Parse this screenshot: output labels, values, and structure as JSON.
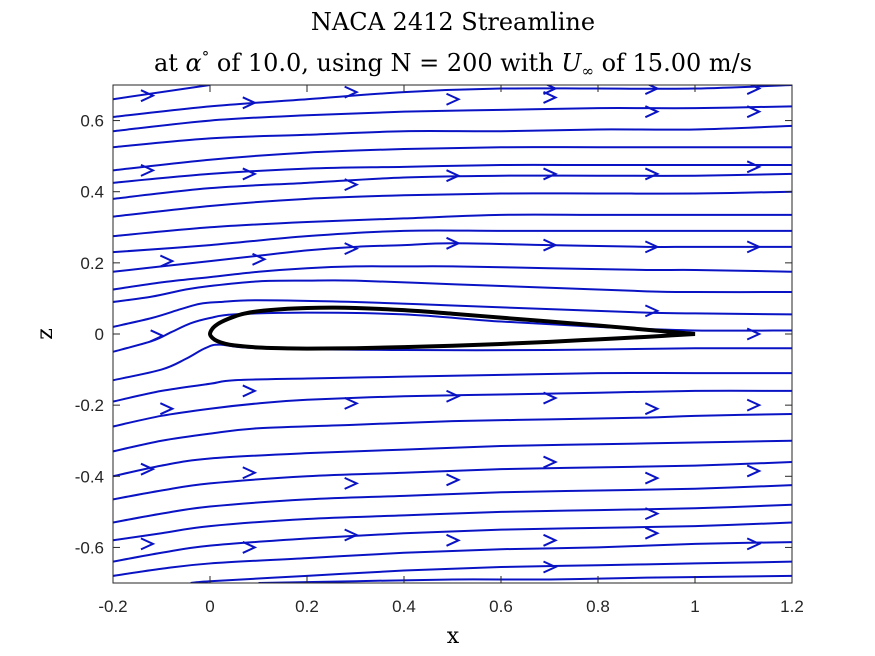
{
  "colors": {
    "streamline": "#0a13c4",
    "airfoil": "#000000"
  },
  "chart_data": {
    "type": "streamline",
    "title_line1": "NACA 2412 Streamline",
    "title_line2": "at α° of 10.0, using N = 200 with U∞ of 15.00 m/s",
    "title_prefix": "at ",
    "title_alpha": "α",
    "title_deg": "°",
    "title_mid": " of 10.0, using N = 200 with ",
    "title_U": "U",
    "title_inf": "∞",
    "title_suffix": " of 15.00 m/s",
    "xlabel": "x",
    "ylabel": "z",
    "xlim": [
      -0.2,
      1.2
    ],
    "ylim": [
      -0.7,
      0.7
    ],
    "xticks": [
      -0.2,
      0,
      0.2,
      0.4,
      0.6,
      0.8,
      1,
      1.2
    ],
    "xtick_labels": [
      "-0.2",
      "0",
      "0.2",
      "0.4",
      "0.6",
      "0.8",
      "1",
      "1.2"
    ],
    "yticks": [
      -0.6,
      -0.4,
      -0.2,
      0,
      0.2,
      0.4,
      0.6
    ],
    "ytick_labels": [
      "-0.6",
      "-0.4",
      "-0.2",
      "0",
      "0.2",
      "0.4",
      "0.6"
    ],
    "airfoil": {
      "name": "NACA 2412",
      "alpha_deg": 10.0,
      "chord": 1.0,
      "upper": [
        [
          1.0,
          0.0
        ],
        [
          0.95,
          0.006
        ],
        [
          0.9,
          0.012
        ],
        [
          0.8,
          0.024
        ],
        [
          0.7,
          0.035
        ],
        [
          0.6,
          0.046
        ],
        [
          0.5,
          0.057
        ],
        [
          0.4,
          0.067
        ],
        [
          0.3,
          0.073
        ],
        [
          0.25,
          0.074
        ],
        [
          0.2,
          0.073
        ],
        [
          0.15,
          0.07
        ],
        [
          0.1,
          0.064
        ],
        [
          0.07,
          0.057
        ],
        [
          0.05,
          0.049
        ],
        [
          0.03,
          0.038
        ],
        [
          0.015,
          0.027
        ],
        [
          0.005,
          0.015
        ],
        [
          0.0,
          0.0
        ]
      ],
      "lower": [
        [
          0.0,
          0.0
        ],
        [
          0.005,
          -0.011
        ],
        [
          0.015,
          -0.02
        ],
        [
          0.03,
          -0.027
        ],
        [
          0.05,
          -0.032
        ],
        [
          0.1,
          -0.038
        ],
        [
          0.15,
          -0.04
        ],
        [
          0.2,
          -0.041
        ],
        [
          0.3,
          -0.04
        ],
        [
          0.4,
          -0.037
        ],
        [
          0.5,
          -0.033
        ],
        [
          0.6,
          -0.028
        ],
        [
          0.7,
          -0.022
        ],
        [
          0.8,
          -0.015
        ],
        [
          0.9,
          -0.008
        ],
        [
          0.95,
          -0.004
        ],
        [
          1.0,
          0.0
        ]
      ]
    },
    "streamlines": [
      [
        [
          -0.2,
          0.66
        ],
        [
          0.0,
          0.7
        ]
      ],
      [
        [
          -0.2,
          0.61
        ],
        [
          0.0,
          0.64
        ],
        [
          0.2,
          0.66
        ],
        [
          0.4,
          0.68
        ],
        [
          0.6,
          0.69
        ],
        [
          0.8,
          0.69
        ],
        [
          1.0,
          0.69
        ],
        [
          1.2,
          0.7
        ]
      ],
      [
        [
          -0.2,
          0.57
        ],
        [
          0.0,
          0.6
        ],
        [
          0.2,
          0.615
        ],
        [
          0.4,
          0.625
        ],
        [
          0.6,
          0.63
        ],
        [
          0.8,
          0.635
        ],
        [
          1.0,
          0.635
        ],
        [
          1.2,
          0.64
        ]
      ],
      [
        [
          -0.2,
          0.525
        ],
        [
          0.0,
          0.55
        ],
        [
          0.2,
          0.56
        ],
        [
          0.4,
          0.57
        ],
        [
          0.6,
          0.57
        ],
        [
          0.8,
          0.575
        ],
        [
          1.0,
          0.575
        ],
        [
          1.2,
          0.585
        ]
      ],
      [
        [
          -0.2,
          0.46
        ],
        [
          0.0,
          0.49
        ],
        [
          0.2,
          0.51
        ],
        [
          0.4,
          0.52
        ],
        [
          0.6,
          0.525
        ],
        [
          0.8,
          0.525
        ],
        [
          1.0,
          0.525
        ],
        [
          1.2,
          0.525
        ]
      ],
      [
        [
          -0.2,
          0.425
        ],
        [
          0.0,
          0.45
        ],
        [
          0.2,
          0.465
        ],
        [
          0.4,
          0.47
        ],
        [
          0.6,
          0.475
        ],
        [
          0.8,
          0.475
        ],
        [
          1.0,
          0.475
        ],
        [
          1.2,
          0.475
        ]
      ],
      [
        [
          -0.2,
          0.38
        ],
        [
          0.0,
          0.41
        ],
        [
          0.2,
          0.425
        ],
        [
          0.4,
          0.44
        ],
        [
          0.6,
          0.445
        ],
        [
          0.8,
          0.445
        ],
        [
          1.0,
          0.445
        ],
        [
          1.2,
          0.45
        ]
      ],
      [
        [
          -0.2,
          0.33
        ],
        [
          0.0,
          0.36
        ],
        [
          0.2,
          0.38
        ],
        [
          0.4,
          0.39
        ],
        [
          0.6,
          0.395
        ],
        [
          0.8,
          0.395
        ],
        [
          1.0,
          0.395
        ],
        [
          1.2,
          0.4
        ]
      ],
      [
        [
          -0.2,
          0.275
        ],
        [
          0.0,
          0.3
        ],
        [
          0.2,
          0.315
        ],
        [
          0.4,
          0.325
        ],
        [
          0.6,
          0.335
        ],
        [
          0.8,
          0.335
        ],
        [
          1.0,
          0.335
        ],
        [
          1.2,
          0.335
        ]
      ],
      [
        [
          -0.2,
          0.23
        ],
        [
          0.0,
          0.25
        ],
        [
          0.2,
          0.275
        ],
        [
          0.4,
          0.29
        ],
        [
          0.6,
          0.29
        ],
        [
          0.8,
          0.29
        ],
        [
          1.0,
          0.29
        ],
        [
          1.2,
          0.29
        ]
      ],
      [
        [
          -0.2,
          0.175
        ],
        [
          -0.1,
          0.19
        ],
        [
          0.0,
          0.205
        ],
        [
          0.1,
          0.22
        ],
        [
          0.2,
          0.235
        ],
        [
          0.3,
          0.245
        ],
        [
          0.4,
          0.25
        ],
        [
          0.5,
          0.255
        ],
        [
          0.7,
          0.25
        ],
        [
          0.9,
          0.245
        ],
        [
          1.0,
          0.245
        ],
        [
          1.2,
          0.245
        ]
      ],
      [
        [
          -0.2,
          0.125
        ],
        [
          -0.1,
          0.145
        ],
        [
          0.0,
          0.16
        ],
        [
          0.1,
          0.175
        ],
        [
          0.2,
          0.185
        ],
        [
          0.3,
          0.19
        ],
        [
          0.4,
          0.19
        ],
        [
          0.5,
          0.19
        ],
        [
          0.7,
          0.185
        ],
        [
          0.9,
          0.18
        ],
        [
          1.0,
          0.18
        ],
        [
          1.2,
          0.175
        ]
      ],
      [
        [
          -0.2,
          0.09
        ],
        [
          -0.12,
          0.105
        ],
        [
          -0.05,
          0.125
        ],
        [
          0.0,
          0.135
        ],
        [
          0.1,
          0.148
        ],
        [
          0.2,
          0.15
        ],
        [
          0.3,
          0.15
        ],
        [
          0.5,
          0.14
        ],
        [
          0.7,
          0.13
        ],
        [
          0.9,
          0.12
        ],
        [
          1.0,
          0.118
        ],
        [
          1.2,
          0.118
        ]
      ],
      [
        [
          -0.2,
          0.02
        ],
        [
          -0.12,
          0.045
        ],
        [
          -0.06,
          0.07
        ],
        [
          -0.02,
          0.085
        ],
        [
          0.02,
          0.09
        ],
        [
          0.1,
          0.095
        ],
        [
          0.3,
          0.09
        ],
        [
          0.5,
          0.08
        ],
        [
          0.7,
          0.07
        ],
        [
          0.9,
          0.06
        ],
        [
          1.0,
          0.058
        ],
        [
          1.2,
          0.055
        ]
      ],
      [
        [
          -0.2,
          -0.05
        ],
        [
          -0.12,
          -0.02
        ],
        [
          -0.08,
          0.005
        ],
        [
          -0.04,
          0.03
        ],
        [
          0.0,
          0.045
        ],
        [
          0.05,
          0.055
        ],
        [
          0.2,
          0.06
        ],
        [
          0.4,
          0.055
        ],
        [
          0.6,
          0.035
        ],
        [
          0.8,
          0.02
        ],
        [
          1.0,
          0.01
        ],
        [
          1.2,
          0.01
        ]
      ],
      [
        [
          -0.2,
          -0.13
        ],
        [
          -0.1,
          -0.1
        ],
        [
          -0.05,
          -0.07
        ],
        [
          -0.01,
          -0.04
        ],
        [
          0.02,
          -0.03
        ],
        [
          0.1,
          -0.04
        ],
        [
          0.4,
          -0.045
        ],
        [
          0.7,
          -0.045
        ],
        [
          1.0,
          -0.04
        ],
        [
          1.2,
          -0.04
        ]
      ],
      [
        [
          -0.2,
          -0.19
        ],
        [
          -0.1,
          -0.16
        ],
        [
          0.0,
          -0.14
        ],
        [
          0.05,
          -0.13
        ],
        [
          0.2,
          -0.125
        ],
        [
          0.4,
          -0.12
        ],
        [
          0.6,
          -0.115
        ],
        [
          0.8,
          -0.11
        ],
        [
          1.0,
          -0.11
        ],
        [
          1.2,
          -0.11
        ]
      ],
      [
        [
          -0.2,
          -0.26
        ],
        [
          -0.1,
          -0.23
        ],
        [
          0.0,
          -0.21
        ],
        [
          0.1,
          -0.195
        ],
        [
          0.2,
          -0.185
        ],
        [
          0.4,
          -0.175
        ],
        [
          0.6,
          -0.17
        ],
        [
          0.8,
          -0.165
        ],
        [
          1.0,
          -0.16
        ],
        [
          1.2,
          -0.16
        ]
      ],
      [
        [
          -0.2,
          -0.33
        ],
        [
          -0.1,
          -0.3
        ],
        [
          0.0,
          -0.28
        ],
        [
          0.1,
          -0.265
        ],
        [
          0.3,
          -0.255
        ],
        [
          0.5,
          -0.245
        ],
        [
          0.7,
          -0.24
        ],
        [
          0.9,
          -0.235
        ],
        [
          1.0,
          -0.23
        ],
        [
          1.2,
          -0.225
        ]
      ],
      [
        [
          -0.2,
          -0.4
        ],
        [
          -0.1,
          -0.37
        ],
        [
          0.0,
          -0.35
        ],
        [
          0.2,
          -0.335
        ],
        [
          0.4,
          -0.325
        ],
        [
          0.6,
          -0.315
        ],
        [
          0.8,
          -0.31
        ],
        [
          1.0,
          -0.305
        ],
        [
          1.2,
          -0.3
        ]
      ],
      [
        [
          -0.2,
          -0.465
        ],
        [
          -0.1,
          -0.44
        ],
        [
          0.0,
          -0.42
        ],
        [
          0.2,
          -0.4
        ],
        [
          0.4,
          -0.39
        ],
        [
          0.6,
          -0.38
        ],
        [
          0.8,
          -0.375
        ],
        [
          1.0,
          -0.37
        ],
        [
          1.2,
          -0.36
        ]
      ],
      [
        [
          -0.2,
          -0.53
        ],
        [
          -0.1,
          -0.505
        ],
        [
          0.0,
          -0.485
        ],
        [
          0.2,
          -0.465
        ],
        [
          0.4,
          -0.455
        ],
        [
          0.6,
          -0.445
        ],
        [
          0.8,
          -0.44
        ],
        [
          1.0,
          -0.435
        ],
        [
          1.2,
          -0.425
        ]
      ],
      [
        [
          -0.2,
          -0.58
        ],
        [
          -0.1,
          -0.56
        ],
        [
          0.0,
          -0.54
        ],
        [
          0.2,
          -0.52
        ],
        [
          0.4,
          -0.51
        ],
        [
          0.6,
          -0.5
        ],
        [
          0.8,
          -0.495
        ],
        [
          1.0,
          -0.49
        ],
        [
          1.2,
          -0.48
        ]
      ],
      [
        [
          -0.2,
          -0.64
        ],
        [
          -0.1,
          -0.615
        ],
        [
          0.0,
          -0.595
        ],
        [
          0.2,
          -0.575
        ],
        [
          0.4,
          -0.56
        ],
        [
          0.6,
          -0.55
        ],
        [
          0.8,
          -0.545
        ],
        [
          1.0,
          -0.54
        ],
        [
          1.2,
          -0.53
        ]
      ],
      [
        [
          -0.2,
          -0.68
        ],
        [
          -0.1,
          -0.66
        ],
        [
          0.0,
          -0.645
        ],
        [
          0.2,
          -0.63
        ],
        [
          0.4,
          -0.615
        ],
        [
          0.6,
          -0.605
        ],
        [
          0.8,
          -0.6
        ],
        [
          1.0,
          -0.59
        ],
        [
          1.2,
          -0.585
        ]
      ],
      [
        [
          -0.04,
          -0.7
        ],
        [
          0.0,
          -0.695
        ],
        [
          0.2,
          -0.68
        ],
        [
          0.4,
          -0.665
        ],
        [
          0.6,
          -0.655
        ],
        [
          0.8,
          -0.65
        ],
        [
          1.0,
          -0.645
        ],
        [
          1.2,
          -0.64
        ]
      ],
      [
        [
          0.1,
          -0.7
        ],
        [
          0.3,
          -0.695
        ],
        [
          0.5,
          -0.69
        ],
        [
          0.7,
          -0.69
        ],
        [
          0.9,
          -0.685
        ],
        [
          1.2,
          -0.68
        ]
      ]
    ],
    "arrows": [
      [
        -0.13,
        0.67
      ],
      [
        0.08,
        0.65
      ],
      [
        0.29,
        0.68
      ],
      [
        0.7,
        0.69
      ],
      [
        0.91,
        0.69
      ],
      [
        1.12,
        0.69
      ],
      [
        0.5,
        0.66
      ],
      [
        0.7,
        0.665
      ],
      [
        0.91,
        0.625
      ],
      [
        1.12,
        0.625
      ],
      [
        -0.13,
        0.46
      ],
      [
        0.08,
        0.45
      ],
      [
        0.29,
        0.42
      ],
      [
        0.5,
        0.445
      ],
      [
        0.7,
        0.45
      ],
      [
        0.91,
        0.45
      ],
      [
        1.12,
        0.47
      ],
      [
        0.29,
        0.24
      ],
      [
        0.5,
        0.255
      ],
      [
        0.7,
        0.25
      ],
      [
        0.91,
        0.245
      ],
      [
        1.12,
        0.245
      ],
      [
        -0.09,
        0.205
      ],
      [
        0.1,
        0.21
      ],
      [
        0.91,
        0.065
      ],
      [
        1.12,
        0.0
      ],
      [
        -0.11,
        -0.005
      ],
      [
        0.08,
        -0.16
      ],
      [
        0.29,
        -0.195
      ],
      [
        0.5,
        -0.175
      ],
      [
        0.7,
        -0.18
      ],
      [
        0.91,
        -0.21
      ],
      [
        1.12,
        -0.2
      ],
      [
        -0.09,
        -0.21
      ],
      [
        -0.13,
        -0.38
      ],
      [
        0.08,
        -0.39
      ],
      [
        0.29,
        -0.42
      ],
      [
        0.5,
        -0.41
      ],
      [
        0.7,
        -0.36
      ],
      [
        0.91,
        -0.405
      ],
      [
        1.12,
        -0.385
      ],
      [
        -0.13,
        -0.59
      ],
      [
        0.08,
        -0.6
      ],
      [
        0.29,
        -0.565
      ],
      [
        0.5,
        -0.58
      ],
      [
        0.7,
        -0.58
      ],
      [
        0.91,
        -0.56
      ],
      [
        1.12,
        -0.59
      ],
      [
        0.91,
        -0.505
      ],
      [
        0.7,
        -0.655
      ]
    ]
  }
}
